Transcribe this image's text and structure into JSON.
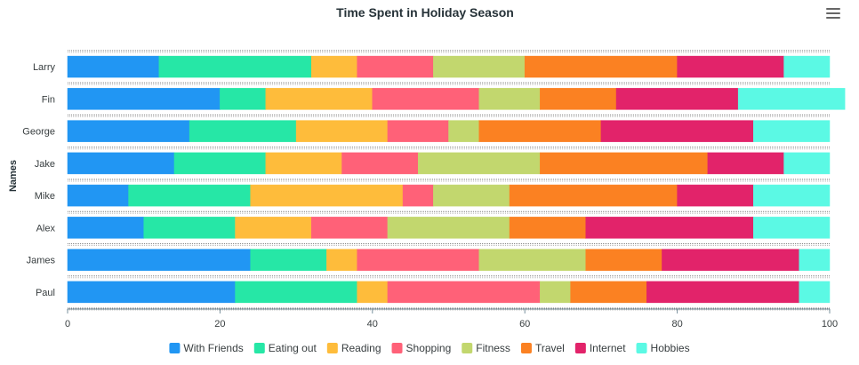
{
  "chart_data": {
    "type": "bar",
    "orientation": "horizontal",
    "stacked": true,
    "title": "Time Spent in Holiday Season",
    "xlabel": "",
    "ylabel": "Names",
    "xlim": [
      0,
      100
    ],
    "xticks": [
      0,
      20,
      40,
      60,
      80,
      100
    ],
    "grid": false,
    "legend_position": "bottom",
    "categories": [
      "Larry",
      "Fin",
      "George",
      "Jake",
      "Mike",
      "Alex",
      "James",
      "Paul"
    ],
    "series": [
      {
        "name": "With Friends",
        "color": "#2196F3",
        "values": [
          12,
          20,
          16,
          14,
          8,
          10,
          24,
          22
        ]
      },
      {
        "name": "Eating out",
        "color": "#26E7A6",
        "values": [
          20,
          6,
          14,
          12,
          16,
          12,
          10,
          16
        ]
      },
      {
        "name": "Reading",
        "color": "#FEBC3B",
        "values": [
          6,
          14,
          12,
          10,
          20,
          10,
          4,
          4
        ]
      },
      {
        "name": "Shopping",
        "color": "#FF6178",
        "values": [
          10,
          14,
          8,
          10,
          4,
          10,
          16,
          20
        ]
      },
      {
        "name": "Fitness",
        "color": "#C2D76E",
        "values": [
          12,
          8,
          4,
          16,
          10,
          16,
          14,
          4
        ]
      },
      {
        "name": "Travel",
        "color": "#FB8122",
        "values": [
          20,
          10,
          16,
          22,
          22,
          10,
          10,
          10
        ]
      },
      {
        "name": "Internet",
        "color": "#E2236A",
        "values": [
          14,
          16,
          20,
          10,
          10,
          22,
          18,
          20
        ]
      },
      {
        "name": "Hobbies",
        "color": "#5BF9E4",
        "values": [
          6,
          14,
          10,
          6,
          10,
          10,
          4,
          4
        ]
      }
    ]
  },
  "toolbar": {
    "menu_icon": "hamburger-menu-icon"
  }
}
